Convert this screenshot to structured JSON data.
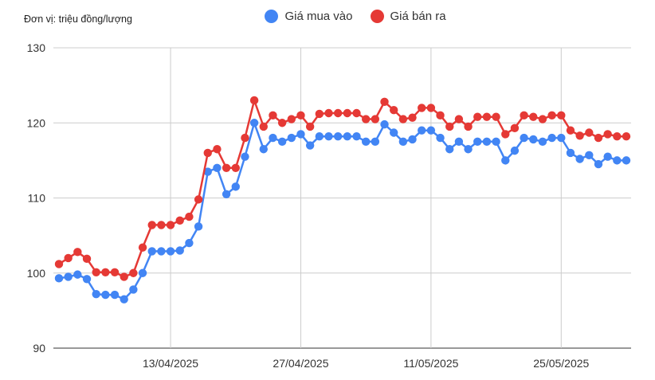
{
  "unit_label": "Đơn vị: triệu đồng/lượng",
  "colors": {
    "buy": "#4285f4",
    "sell": "#e53935",
    "grid": "#cccccc",
    "axis": "#333333"
  },
  "chart_data": {
    "type": "line",
    "title": "",
    "xlabel": "",
    "ylabel": "",
    "ylim": [
      90,
      130
    ],
    "yticks": [
      90,
      100,
      110,
      120,
      130
    ],
    "xticks": [
      "13/04/2025",
      "27/04/2025",
      "11/05/2025",
      "25/05/2025"
    ],
    "xtick_indices": [
      12,
      26,
      40,
      54
    ],
    "grid": true,
    "legend_position": "top",
    "series": [
      {
        "name": "Giá mua vào",
        "color": "#4285f4",
        "values": [
          99.3,
          99.5,
          99.8,
          99.2,
          97.2,
          97.1,
          97.1,
          96.5,
          97.8,
          100.0,
          102.9,
          102.9,
          102.9,
          103.0,
          104.0,
          106.2,
          113.5,
          114.0,
          110.5,
          111.5,
          115.5,
          120.0,
          116.5,
          118.0,
          117.5,
          118.0,
          118.5,
          117.0,
          118.2,
          118.2,
          118.2,
          118.2,
          118.2,
          117.5,
          117.5,
          119.8,
          118.7,
          117.5,
          117.8,
          119.0,
          119.0,
          118.0,
          116.5,
          117.5,
          116.5,
          117.5,
          117.5,
          117.5,
          115.0,
          116.3,
          118.0,
          117.8,
          117.5,
          118.0,
          118.0,
          116.0,
          115.2,
          115.7,
          114.5,
          115.5,
          115.0,
          115.0
        ]
      },
      {
        "name": "Giá bán ra",
        "color": "#e53935",
        "values": [
          101.2,
          102.0,
          102.8,
          101.9,
          100.1,
          100.1,
          100.1,
          99.5,
          100.0,
          103.4,
          106.4,
          106.4,
          106.4,
          107.0,
          107.5,
          109.8,
          116.0,
          116.5,
          114.0,
          114.0,
          118.0,
          123.0,
          119.5,
          121.0,
          120.0,
          120.5,
          121.0,
          119.5,
          121.2,
          121.3,
          121.3,
          121.3,
          121.3,
          120.5,
          120.5,
          122.8,
          121.7,
          120.5,
          120.7,
          122.0,
          122.0,
          121.0,
          119.5,
          120.5,
          119.5,
          120.8,
          120.8,
          120.8,
          118.5,
          119.3,
          121.0,
          120.8,
          120.5,
          121.0,
          121.0,
          119.0,
          118.3,
          118.7,
          118.0,
          118.5,
          118.2,
          118.2
        ]
      }
    ]
  }
}
